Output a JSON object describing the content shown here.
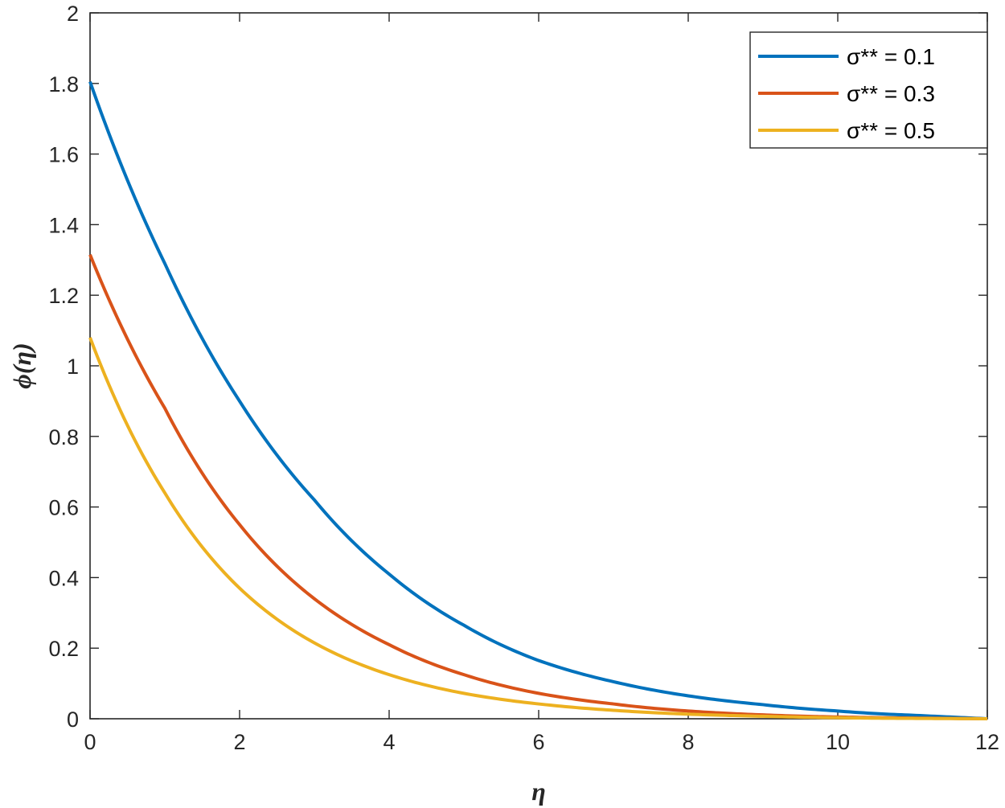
{
  "chart_data": {
    "type": "line",
    "title": "",
    "xlabel": "η",
    "ylabel": "ϕ(η)",
    "xlim": [
      0,
      12
    ],
    "ylim": [
      0,
      2
    ],
    "xticks": [
      0,
      2,
      4,
      6,
      8,
      10,
      12
    ],
    "yticks": [
      0,
      0.2,
      0.4,
      0.6,
      0.8,
      1,
      1.2,
      1.4,
      1.6,
      1.8,
      2
    ],
    "xtick_labels": [
      "0",
      "2",
      "4",
      "6",
      "8",
      "10",
      "12"
    ],
    "ytick_labels": [
      "0",
      "0.2",
      "0.4",
      "0.6",
      "0.8",
      "1",
      "1.2",
      "1.4",
      "1.6",
      "1.8",
      "2"
    ],
    "grid": false,
    "legend_position": "top-right",
    "x": [
      0,
      1,
      2,
      3,
      4,
      5,
      6,
      7,
      8,
      9,
      10,
      11,
      12
    ],
    "series": [
      {
        "name": "σ** = 0.1",
        "color": "#0072BD",
        "values": [
          1.805,
          1.29,
          0.9,
          0.62,
          0.41,
          0.265,
          0.165,
          0.105,
          0.065,
          0.04,
          0.022,
          0.01,
          0.0
        ]
      },
      {
        "name": "σ** = 0.3",
        "color": "#D95319",
        "values": [
          1.315,
          0.88,
          0.55,
          0.34,
          0.21,
          0.125,
          0.072,
          0.042,
          0.022,
          0.011,
          0.005,
          0.002,
          0.0
        ]
      },
      {
        "name": "σ** = 0.5",
        "color": "#EDB120",
        "values": [
          1.08,
          0.64,
          0.37,
          0.215,
          0.125,
          0.072,
          0.042,
          0.024,
          0.013,
          0.007,
          0.003,
          0.001,
          0.0
        ]
      }
    ]
  }
}
